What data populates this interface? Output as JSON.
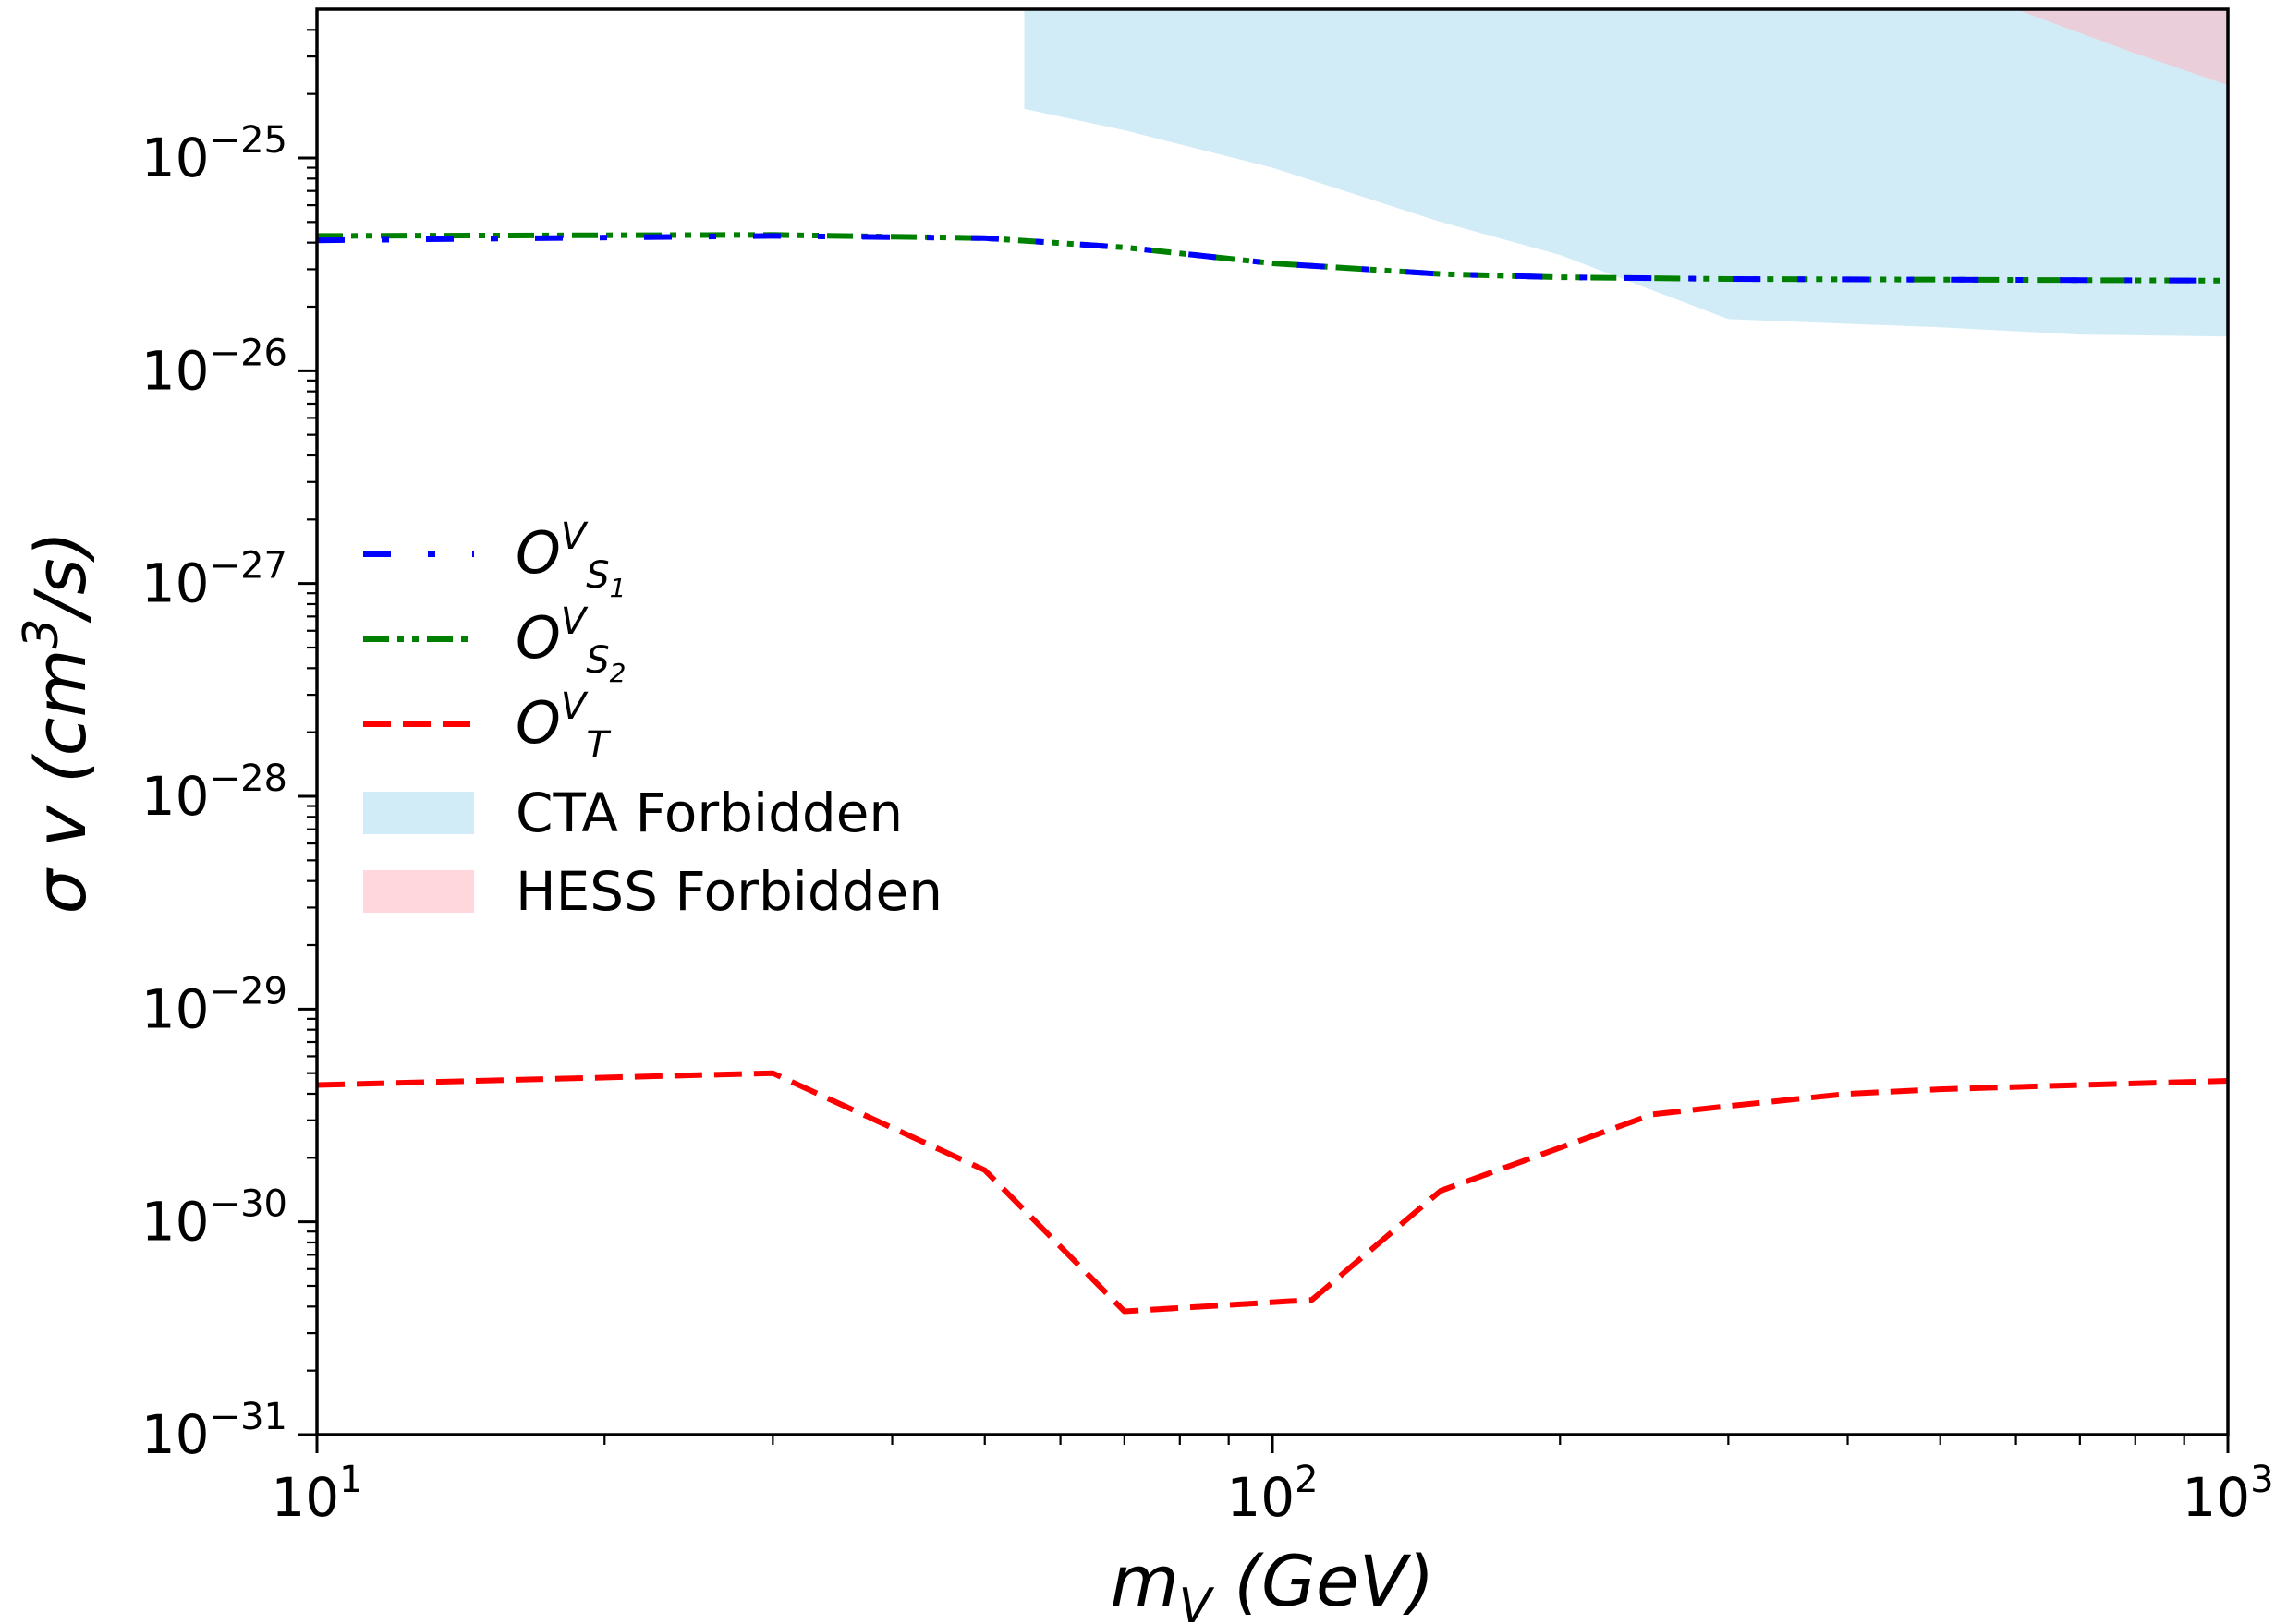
{
  "chart_data": {
    "type": "line",
    "title": "",
    "xlabel": {
      "base": "m",
      "sub": "V",
      "unit": " (GeV)"
    },
    "ylabel": {
      "pre": "σ v (cm",
      "sup": "3",
      "post": "/s)"
    },
    "xscale": "log",
    "yscale": "log",
    "xlim": [
      10,
      1000
    ],
    "ylim": [
      1e-31,
      5e-25
    ],
    "xticks": [
      {
        "value": 10,
        "base": "10",
        "exp": "1"
      },
      {
        "value": 100,
        "base": "10",
        "exp": "2"
      },
      {
        "value": 1000,
        "base": "10",
        "exp": "3"
      }
    ],
    "yticks": [
      {
        "value": 1e-25,
        "base": "10",
        "exp": "−25"
      },
      {
        "value": 1e-26,
        "base": "10",
        "exp": "−26"
      },
      {
        "value": 1e-27,
        "base": "10",
        "exp": "−27"
      },
      {
        "value": 1e-28,
        "base": "10",
        "exp": "−28"
      },
      {
        "value": 1e-29,
        "base": "10",
        "exp": "−29"
      },
      {
        "value": 1e-30,
        "base": "10",
        "exp": "−30"
      },
      {
        "value": 1e-31,
        "base": "10",
        "exp": "−31"
      }
    ],
    "grid": false,
    "legend_position": "center-left",
    "series": [
      {
        "name": "O^V_S1",
        "label": {
          "base": "O",
          "sup": "V",
          "sub": "S",
          "subsub": "1"
        },
        "color": "#0000ff",
        "linestyle": "dashdot-sparse",
        "x": [
          10,
          30,
          50,
          70,
          100,
          150,
          200,
          300,
          500,
          1000
        ],
        "y": [
          4.1e-26,
          4.3e-26,
          4.2e-26,
          3.8e-26,
          3.2e-26,
          2.85e-26,
          2.75e-26,
          2.7e-26,
          2.68e-26,
          2.65e-26
        ]
      },
      {
        "name": "O^V_S2",
        "label": {
          "base": "O",
          "sup": "V",
          "sub": "S",
          "subsub": "2"
        },
        "color": "#008000",
        "linestyle": "dashdotdot",
        "x": [
          10,
          30,
          50,
          70,
          100,
          150,
          200,
          300,
          500,
          1000
        ],
        "y": [
          4.3e-26,
          4.35e-26,
          4.2e-26,
          3.8e-26,
          3.2e-26,
          2.85e-26,
          2.75e-26,
          2.7e-26,
          2.68e-26,
          2.65e-26
        ]
      },
      {
        "name": "O^V_T",
        "label": {
          "base": "O",
          "sup": "V",
          "sub": "T",
          "subsub": ""
        },
        "color": "#ff0000",
        "linestyle": "dashed",
        "x": [
          10,
          30,
          50,
          70,
          110,
          150,
          250,
          300,
          400,
          500,
          700,
          1000
        ],
        "y": [
          4.4e-30,
          5e-30,
          1.75e-30,
          3.8e-31,
          4.3e-31,
          1.4e-30,
          3.2e-30,
          3.5e-30,
          4e-30,
          4.2e-30,
          4.4e-30,
          4.6e-30
        ]
      }
    ],
    "regions": [
      {
        "name": "CTA Forbidden",
        "color": "#87ceeb",
        "opacity": 0.38,
        "x": [
          55,
          70,
          100,
          150,
          200,
          300,
          500,
          700,
          1000
        ],
        "y": [
          1.7e-25,
          1.35e-25,
          9e-26,
          5e-26,
          3.5e-26,
          1.75e-26,
          1.6e-26,
          1.48e-26,
          1.45e-26
        ]
      },
      {
        "name": "HESS Forbidden",
        "color": "#ffb6c1",
        "opacity": 0.55,
        "x": [
          600,
          800,
          1000
        ],
        "y": [
          5e-25,
          3.1e-25,
          2.2e-25
        ]
      }
    ]
  }
}
